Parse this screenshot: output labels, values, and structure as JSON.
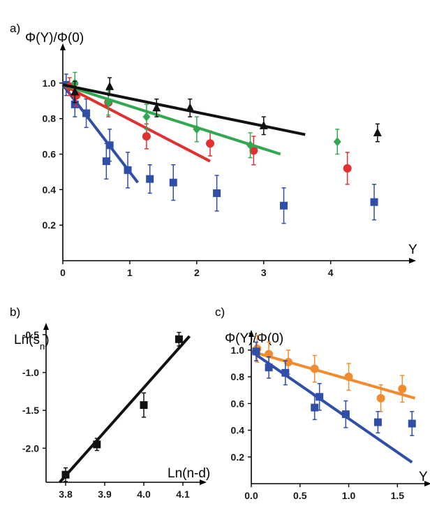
{
  "chart_data": [
    {
      "panel": "a)",
      "type": "scatter",
      "ylabel": "Φ(Y)/Φ(0)",
      "xlabel": "Y",
      "xlim": [
        0,
        4.9
      ],
      "ylim": [
        0,
        1.2
      ],
      "xticks": [
        "0",
        "1",
        "2",
        "3",
        "4"
      ],
      "yticks": [
        "0.2",
        "0.4",
        "0.6",
        "0.8",
        "1.0"
      ],
      "series": [
        {
          "color": "#2e4ea8",
          "marker": "square",
          "x": [
            0.05,
            0.18,
            0.35,
            0.65,
            0.7,
            0.97,
            1.3,
            1.65,
            2.3,
            3.3,
            4.65
          ],
          "y": [
            0.99,
            0.88,
            0.83,
            0.56,
            0.65,
            0.51,
            0.46,
            0.44,
            0.38,
            0.31,
            0.33
          ],
          "err": [
            0.06,
            0.07,
            0.08,
            0.1,
            0.09,
            0.1,
            0.08,
            0.1,
            0.1,
            0.1,
            0.1
          ],
          "fit": [
            [
              0,
              0.99
            ],
            [
              1.12,
              0.44
            ]
          ]
        },
        {
          "color": "#e03030",
          "marker": "circle",
          "x": [
            0.1,
            0.2,
            0.68,
            1.25,
            2.2,
            2.85,
            4.25
          ],
          "y": [
            0.98,
            0.93,
            0.89,
            0.7,
            0.66,
            0.62,
            0.52
          ],
          "err": [
            0.05,
            0.06,
            0.08,
            0.07,
            0.07,
            0.08,
            0.09
          ],
          "fit": [
            [
              0,
              0.99
            ],
            [
              2.2,
              0.56
            ]
          ]
        },
        {
          "color": "#33a853",
          "marker": "diamond",
          "x": [
            0.18,
            0.68,
            1.25,
            2.0,
            2.8,
            4.1
          ],
          "y": [
            1.0,
            0.89,
            0.81,
            0.74,
            0.65,
            0.67
          ],
          "err": [
            0.06,
            0.07,
            0.07,
            0.07,
            0.07,
            0.07
          ],
          "fit": [
            [
              0,
              0.99
            ],
            [
              3.25,
              0.6
            ]
          ]
        },
        {
          "color": "#111111",
          "marker": "triangle",
          "x": [
            0.18,
            0.7,
            1.4,
            1.9,
            3.0,
            4.7
          ],
          "y": [
            0.95,
            0.98,
            0.86,
            0.86,
            0.76,
            0.72
          ],
          "err": [
            0.06,
            0.05,
            0.05,
            0.05,
            0.05,
            0.05
          ],
          "fit": [
            [
              0,
              0.99
            ],
            [
              3.62,
              0.71
            ]
          ]
        }
      ]
    },
    {
      "panel": "b)",
      "type": "scatter",
      "ylabel": "Ln(s",
      "ylabel_sub": "n",
      "ylabel_end": ")",
      "xlabel": "Ln(n-d)",
      "xlim": [
        3.75,
        4.15
      ],
      "ylim": [
        -2.45,
        -0.4
      ],
      "xticks": [
        "3.8",
        "3.9",
        "4.0",
        "4.1"
      ],
      "yticks": [
        "-2.0",
        "-1.5",
        "-1.0",
        "-0.5"
      ],
      "series": [
        {
          "color": "#111111",
          "marker": "square",
          "x": [
            3.8,
            3.88,
            4.0,
            4.09
          ],
          "y": [
            -2.35,
            -1.95,
            -1.43,
            -0.56
          ],
          "err": [
            0.09,
            0.08,
            0.16,
            0.09
          ],
          "fit": [
            [
              3.785,
              -2.45
            ],
            [
              4.117,
              -0.52
            ]
          ]
        }
      ]
    },
    {
      "panel": "c)",
      "type": "scatter",
      "ylabel": "Φ(Y)/Φ(0)",
      "xlabel": "Y",
      "xlim": [
        0,
        1.72
      ],
      "ylim": [
        0,
        1.12
      ],
      "xticks": [
        "0.0",
        "0.5",
        "1.0",
        "1.5"
      ],
      "yticks": [
        "0.2",
        "0.4",
        "0.6",
        "0.8",
        "1.0"
      ],
      "series": [
        {
          "color": "#f08c2e",
          "marker": "circle",
          "x": [
            0.06,
            0.18,
            0.38,
            0.65,
            1.0,
            1.33,
            1.55
          ],
          "y": [
            1.01,
            0.97,
            0.91,
            0.86,
            0.8,
            0.64,
            0.71
          ],
          "err": [
            0.1,
            0.09,
            0.09,
            0.1,
            0.1,
            0.1,
            0.1
          ],
          "fit": [
            [
              0,
              0.99
            ],
            [
              1.68,
              0.64
            ]
          ]
        },
        {
          "color": "#2e4ea8",
          "marker": "square",
          "x": [
            0.05,
            0.18,
            0.35,
            0.65,
            0.7,
            0.97,
            1.3,
            1.65
          ],
          "y": [
            0.99,
            0.87,
            0.83,
            0.57,
            0.65,
            0.52,
            0.46,
            0.45
          ],
          "err": [
            0.07,
            0.08,
            0.09,
            0.09,
            0.1,
            0.1,
            0.08,
            0.09
          ],
          "fit": [
            [
              0,
              0.99
            ],
            [
              1.65,
              0.16
            ]
          ]
        }
      ]
    }
  ]
}
